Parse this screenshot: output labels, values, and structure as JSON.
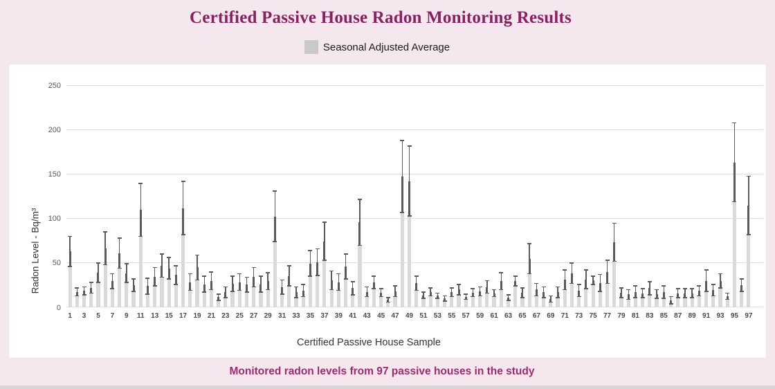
{
  "header": {
    "title": "Certified Passive House Radon Monitoring Results",
    "legend_label": "Seasonal Adjusted Average"
  },
  "caption": {
    "text": "Monitored radon levels from 97 passive houses in the study"
  },
  "colors": {
    "background": "#f5e7ee",
    "panel": "#ffffff",
    "title": "#8a2061",
    "caption": "#a02a6b",
    "bar": "#d9d9d9",
    "error_bar": "#5a5a5a",
    "legend_swatch": "#c9c9c9",
    "gridline": "#dedede",
    "tick_text": "#595959",
    "axis_title_text": "#333333"
  },
  "chart_data": {
    "type": "bar",
    "title": "Certified Passive House Radon Monitoring Results",
    "legend": [
      "Seasonal Adjusted Average"
    ],
    "legend_position": "top-center",
    "xlabel": "Certified Passive House Sample",
    "ylabel": "Radon Level - Bq/m³",
    "ylim": [
      0,
      250
    ],
    "yticks": [
      0,
      50,
      100,
      150,
      200,
      250
    ],
    "grid": "horizontal",
    "error_bar_style": "bar top marks lower bound; thick segment rises to mean; thin whisker with caps extends to upper bound",
    "x_ticks_shown": [
      1,
      3,
      5,
      7,
      9,
      11,
      13,
      15,
      17,
      19,
      21,
      23,
      25,
      27,
      29,
      31,
      33,
      35,
      37,
      39,
      41,
      43,
      45,
      47,
      49,
      51,
      53,
      55,
      57,
      59,
      61,
      63,
      65,
      67,
      69,
      71,
      73,
      75,
      77,
      79,
      81,
      83,
      85,
      87,
      89,
      91,
      93,
      95,
      97
    ],
    "categories": [
      1,
      2,
      3,
      4,
      5,
      6,
      7,
      8,
      9,
      10,
      11,
      12,
      13,
      14,
      15,
      16,
      17,
      18,
      19,
      20,
      21,
      22,
      23,
      24,
      25,
      26,
      27,
      28,
      29,
      30,
      31,
      32,
      33,
      34,
      35,
      36,
      37,
      38,
      39,
      40,
      41,
      42,
      43,
      44,
      45,
      46,
      47,
      48,
      49,
      50,
      51,
      52,
      53,
      54,
      55,
      56,
      57,
      58,
      59,
      60,
      61,
      62,
      63,
      64,
      65,
      66,
      67,
      68,
      69,
      70,
      71,
      72,
      73,
      74,
      75,
      76,
      77,
      78,
      79,
      80,
      81,
      82,
      83,
      84,
      85,
      86,
      87,
      88,
      89,
      90,
      91,
      92,
      93,
      94,
      95,
      96,
      97
    ],
    "series": [
      {
        "name": "Seasonal Adjusted Average",
        "values": [
          46,
          13,
          14,
          16,
          28,
          48,
          21,
          44,
          28,
          18,
          80,
          15,
          24,
          34,
          32,
          26,
          82,
          19,
          31,
          17,
          20,
          8,
          11,
          18,
          19,
          17,
          23,
          17,
          20,
          74,
          15,
          24,
          11,
          12,
          35,
          36,
          53,
          20,
          19,
          32,
          14,
          70,
          12,
          21,
          12,
          6,
          12,
          107,
          103,
          19,
          10,
          13,
          10,
          7,
          12,
          14,
          9,
          12,
          13,
          16,
          12,
          20,
          8,
          24,
          11,
          38,
          13,
          11,
          6,
          11,
          20,
          27,
          12,
          21,
          26,
          18,
          27,
          52,
          11,
          9,
          11,
          11,
          14,
          10,
          10,
          4,
          11,
          11,
          11,
          13,
          18,
          13,
          22,
          9,
          119,
          18,
          82
        ],
        "upper_whisker": [
          80,
          22,
          23,
          28,
          50,
          85,
          38,
          78,
          49,
          32,
          140,
          33,
          45,
          60,
          56,
          47,
          142,
          38,
          59,
          35,
          40,
          15,
          23,
          35,
          38,
          34,
          45,
          35,
          39,
          131,
          31,
          47,
          23,
          26,
          64,
          66,
          96,
          41,
          38,
          60,
          29,
          122,
          23,
          35,
          21,
          11,
          24,
          188,
          182,
          35,
          17,
          22,
          16,
          13,
          22,
          26,
          15,
          21,
          23,
          30,
          20,
          39,
          14,
          35,
          22,
          72,
          27,
          23,
          13,
          23,
          42,
          50,
          26,
          42,
          35,
          37,
          53,
          95,
          22,
          20,
          24,
          21,
          29,
          20,
          24,
          12,
          21,
          21,
          21,
          24,
          42,
          26,
          38,
          16,
          208,
          32,
          148
        ]
      }
    ]
  }
}
